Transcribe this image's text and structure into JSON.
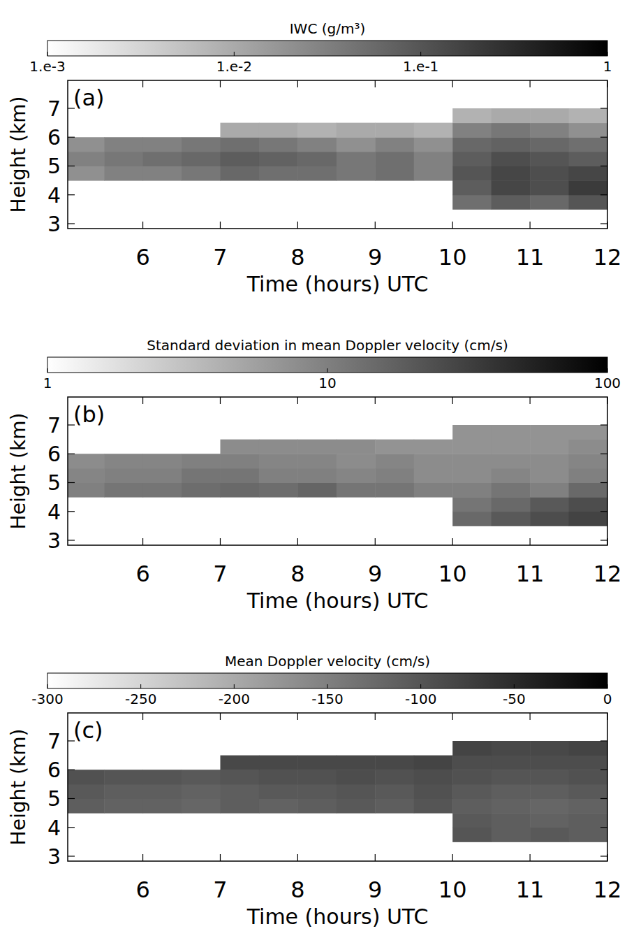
{
  "chart_data": [
    {
      "type": "heatmap",
      "panel": "(a)",
      "title": "IWC (g/m³)",
      "x_label": "Time (hours) UTC",
      "y_label": "Height (km)",
      "xlim": [
        5.03,
        12.0
      ],
      "ylim": [
        2.83,
        7.97
      ],
      "xticks": [
        6,
        7,
        8,
        9,
        10,
        11,
        12
      ],
      "yticks": [
        3,
        4,
        5,
        6,
        7
      ],
      "x": [
        5.25,
        5.75,
        6.25,
        6.75,
        7.25,
        7.75,
        8.25,
        8.75,
        9.25,
        9.75,
        10.25,
        10.75,
        11.25,
        11.75
      ],
      "y": [
        3.75,
        4.25,
        4.75,
        5.25,
        5.75,
        6.25,
        6.75
      ],
      "z": [
        [
          null,
          null,
          null,
          null,
          null,
          null,
          null,
          null,
          null,
          null,
          0.05,
          0.08,
          0.06,
          0.1
        ],
        [
          null,
          null,
          null,
          null,
          null,
          null,
          null,
          null,
          null,
          null,
          0.08,
          0.15,
          0.12,
          0.2
        ],
        [
          0.02,
          0.03,
          0.03,
          0.04,
          0.06,
          0.05,
          0.05,
          0.04,
          0.05,
          0.03,
          0.1,
          0.15,
          0.12,
          0.15
        ],
        [
          0.03,
          0.04,
          0.05,
          0.06,
          0.08,
          0.07,
          0.06,
          0.04,
          0.05,
          0.03,
          0.08,
          0.12,
          0.1,
          0.08
        ],
        [
          0.02,
          0.03,
          0.03,
          0.04,
          0.05,
          0.04,
          0.03,
          0.02,
          0.03,
          0.02,
          0.06,
          0.07,
          0.06,
          0.05
        ],
        [
          null,
          null,
          null,
          null,
          0.01,
          0.01,
          0.008,
          0.01,
          0.01,
          0.008,
          0.03,
          0.04,
          0.03,
          0.02
        ],
        [
          null,
          null,
          null,
          null,
          null,
          null,
          null,
          null,
          null,
          null,
          0.008,
          0.01,
          0.01,
          0.008
        ]
      ],
      "colorbar": {
        "lim": [
          0.001,
          1
        ],
        "log": true,
        "ticks": [
          {
            "value": 0.001,
            "label": "1.e-3"
          },
          {
            "value": 0.01,
            "label": "1.e-2"
          },
          {
            "value": 0.1,
            "label": "1.e-1"
          },
          1
        ]
      }
    },
    {
      "type": "heatmap",
      "panel": "(b)",
      "title": "Standard deviation in mean Doppler velocity (cm/s)",
      "x_label": "Time (hours) UTC",
      "y_label": "Height (km)",
      "xlim": [
        5.03,
        12.0
      ],
      "ylim": [
        2.83,
        7.97
      ],
      "xticks": [
        6,
        7,
        8,
        9,
        10,
        11,
        12
      ],
      "yticks": [
        3,
        4,
        5,
        6,
        7
      ],
      "x": [
        5.25,
        5.75,
        6.25,
        6.75,
        7.25,
        7.75,
        8.25,
        8.75,
        9.25,
        9.75,
        10.25,
        10.75,
        11.25,
        11.75
      ],
      "y": [
        3.75,
        4.25,
        4.75,
        5.25,
        5.75,
        6.25,
        6.75
      ],
      "z": [
        [
          null,
          null,
          null,
          null,
          null,
          null,
          null,
          null,
          null,
          null,
          15,
          20,
          25,
          30
        ],
        [
          null,
          null,
          null,
          null,
          null,
          null,
          null,
          null,
          null,
          null,
          12,
          15,
          20,
          25
        ],
        [
          10,
          12,
          12,
          14,
          15,
          14,
          16,
          12,
          12,
          10,
          10,
          12,
          10,
          15
        ],
        [
          9,
          10,
          10,
          12,
          12,
          10,
          10,
          9,
          10,
          8,
          8,
          9,
          8,
          10
        ],
        [
          8,
          9,
          9,
          10,
          10,
          9,
          9,
          8,
          9,
          8,
          8,
          8,
          8,
          9
        ],
        [
          null,
          null,
          null,
          null,
          8,
          8,
          8,
          8,
          7,
          7,
          7,
          7,
          7,
          8
        ],
        [
          null,
          null,
          null,
          null,
          null,
          null,
          null,
          null,
          null,
          null,
          7,
          7,
          7,
          7
        ]
      ],
      "colorbar": {
        "lim": [
          1,
          100
        ],
        "log": true,
        "ticks": [
          1,
          10,
          100
        ]
      }
    },
    {
      "type": "heatmap",
      "panel": "(c)",
      "title": "Mean Doppler velocity (cm/s)",
      "x_label": "Time (hours) UTC",
      "y_label": "Height (km)",
      "xlim": [
        5.03,
        12.0
      ],
      "ylim": [
        2.83,
        7.97
      ],
      "xticks": [
        6,
        7,
        8,
        9,
        10,
        11,
        12
      ],
      "yticks": [
        3,
        4,
        5,
        6,
        7
      ],
      "x": [
        5.25,
        5.75,
        6.25,
        6.75,
        7.25,
        7.75,
        8.25,
        8.75,
        9.25,
        9.75,
        10.25,
        10.75,
        11.25,
        11.75
      ],
      "y": [
        3.75,
        4.25,
        4.75,
        5.25,
        5.75,
        6.25,
        6.75
      ],
      "z": [
        [
          null,
          null,
          null,
          null,
          null,
          null,
          null,
          null,
          null,
          null,
          -100,
          -110,
          -105,
          -110
        ],
        [
          null,
          null,
          null,
          null,
          null,
          null,
          null,
          null,
          null,
          null,
          -105,
          -110,
          -115,
          -110
        ],
        [
          -110,
          -115,
          -115,
          -120,
          -110,
          -115,
          -110,
          -105,
          -110,
          -100,
          -110,
          -115,
          -120,
          -115
        ],
        [
          -105,
          -110,
          -110,
          -115,
          -110,
          -105,
          -105,
          -100,
          -105,
          -95,
          -105,
          -110,
          -110,
          -105
        ],
        [
          -95,
          -100,
          -100,
          -105,
          -100,
          -95,
          -95,
          -90,
          -95,
          -90,
          -95,
          -100,
          -100,
          -95
        ],
        [
          null,
          null,
          null,
          null,
          -85,
          -85,
          -85,
          -85,
          -85,
          -80,
          -90,
          -90,
          -90,
          -90
        ],
        [
          null,
          null,
          null,
          null,
          null,
          null,
          null,
          null,
          null,
          null,
          -80,
          -85,
          -85,
          -80
        ]
      ],
      "colorbar": {
        "lim": [
          -300,
          0
        ],
        "log": false,
        "ticks": [
          -300,
          -250,
          -200,
          -150,
          -100,
          -50,
          0
        ]
      }
    }
  ]
}
